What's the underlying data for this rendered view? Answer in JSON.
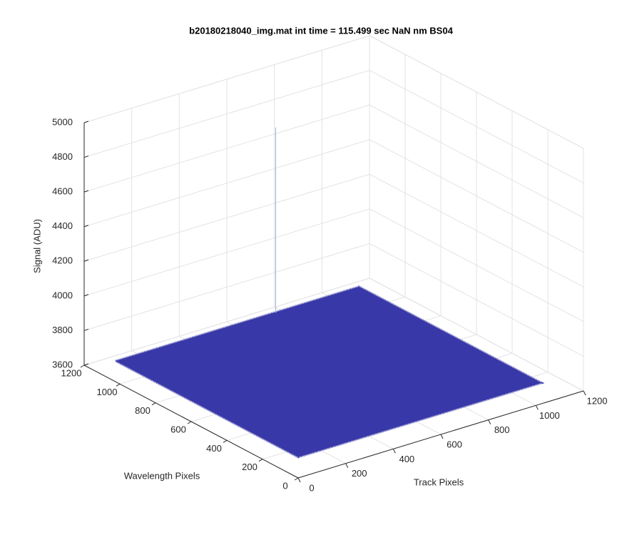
{
  "chart_data": {
    "type": "surface",
    "title": "b20180218040_img.mat int time = 115.499 sec  NaN nm BS04",
    "xlabel": "Track Pixels",
    "ylabel": "Wavelength Pixels",
    "zlabel": "Signal (ADU)",
    "xlim": [
      0,
      1200
    ],
    "ylim": [
      0,
      1200
    ],
    "zlim": [
      3600,
      5000
    ],
    "xticks": [
      0,
      200,
      400,
      600,
      800,
      1000,
      1200
    ],
    "yticks": [
      0,
      200,
      400,
      600,
      800,
      1000,
      1200
    ],
    "zticks": [
      3600,
      3800,
      4000,
      4200,
      4400,
      4600,
      4800,
      5000
    ],
    "x": [
      0,
      1024
    ],
    "y": [
      0,
      1024
    ],
    "z": 3720,
    "peak": {
      "x": 670,
      "y": 1020,
      "z": 4790
    },
    "color": "#3838a8",
    "grid": true
  }
}
